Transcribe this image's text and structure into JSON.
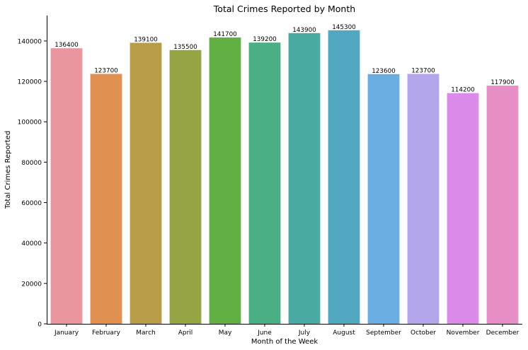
{
  "chart_data": {
    "type": "bar",
    "title": "Total Crimes Reported by Month",
    "xlabel": "Month of the Week",
    "ylabel": "Total Crimes Reported",
    "categories": [
      "January",
      "February",
      "March",
      "April",
      "May",
      "June",
      "July",
      "August",
      "September",
      "October",
      "November",
      "December"
    ],
    "values": [
      136400,
      123700,
      139100,
      135500,
      141700,
      139200,
      143900,
      145300,
      123600,
      123700,
      114200,
      117900
    ],
    "colors": [
      "#e9969f",
      "#e09152",
      "#b89c47",
      "#97a444",
      "#62b044",
      "#4baf86",
      "#4aaba4",
      "#51a8c0",
      "#6aaee1",
      "#b5a6ec",
      "#db8ceb",
      "#e68ec5"
    ],
    "yticks": [
      0,
      20000,
      40000,
      60000,
      80000,
      100000,
      120000,
      140000
    ],
    "ylim": [
      0,
      152570
    ],
    "grid": false,
    "data_labels": true
  }
}
